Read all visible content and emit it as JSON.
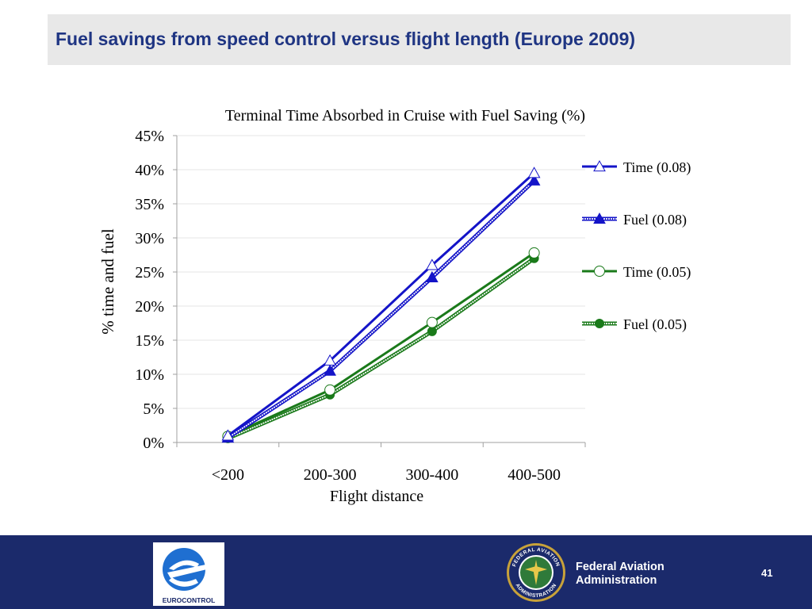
{
  "slide": {
    "title": "Fuel savings from speed control versus flight length (Europe 2009)",
    "page_number": "41"
  },
  "footer": {
    "left_logo_text": "EUROCONTROL",
    "agency_name_line1": "Federal Aviation",
    "agency_name_line2": "Administration",
    "seal_ring_text_top": "FEDERAL AVIATION",
    "seal_ring_text_bottom": "ADMINISTRATION",
    "colors": {
      "footer_bg": "#1b2a6b",
      "title_text": "#1f3583",
      "title_bg": "#e8e8e8"
    }
  },
  "chart_data": {
    "type": "line",
    "title": "Terminal Time Absorbed in Cruise with Fuel Saving (%)",
    "xlabel": "Flight distance",
    "ylabel": "% time and fuel",
    "categories": [
      "<200",
      "200-300",
      "300-400",
      "400-500"
    ],
    "ylim": [
      0,
      0.45
    ],
    "yticks": [
      "0%",
      "5%",
      "10%",
      "15%",
      "20%",
      "25%",
      "30%",
      "35%",
      "40%",
      "45%"
    ],
    "grid": true,
    "legend_position": "right",
    "series": [
      {
        "name": "Time (0.08)",
        "values": [
          0.01,
          0.12,
          0.26,
          0.395
        ],
        "color": "#1414c8",
        "marker": "triangle-open",
        "line": "solid"
      },
      {
        "name": "Fuel (0.08)",
        "values": [
          0.007,
          0.105,
          0.242,
          0.384
        ],
        "color": "#1414c8",
        "marker": "triangle-filled",
        "line": "double"
      },
      {
        "name": "Time (0.05)",
        "values": [
          0.009,
          0.077,
          0.176,
          0.278
        ],
        "color": "#1a7a1a",
        "marker": "circle-open",
        "line": "solid"
      },
      {
        "name": "Fuel (0.05)",
        "values": [
          0.006,
          0.07,
          0.163,
          0.27
        ],
        "color": "#1a7a1a",
        "marker": "circle-filled",
        "line": "double"
      }
    ]
  }
}
